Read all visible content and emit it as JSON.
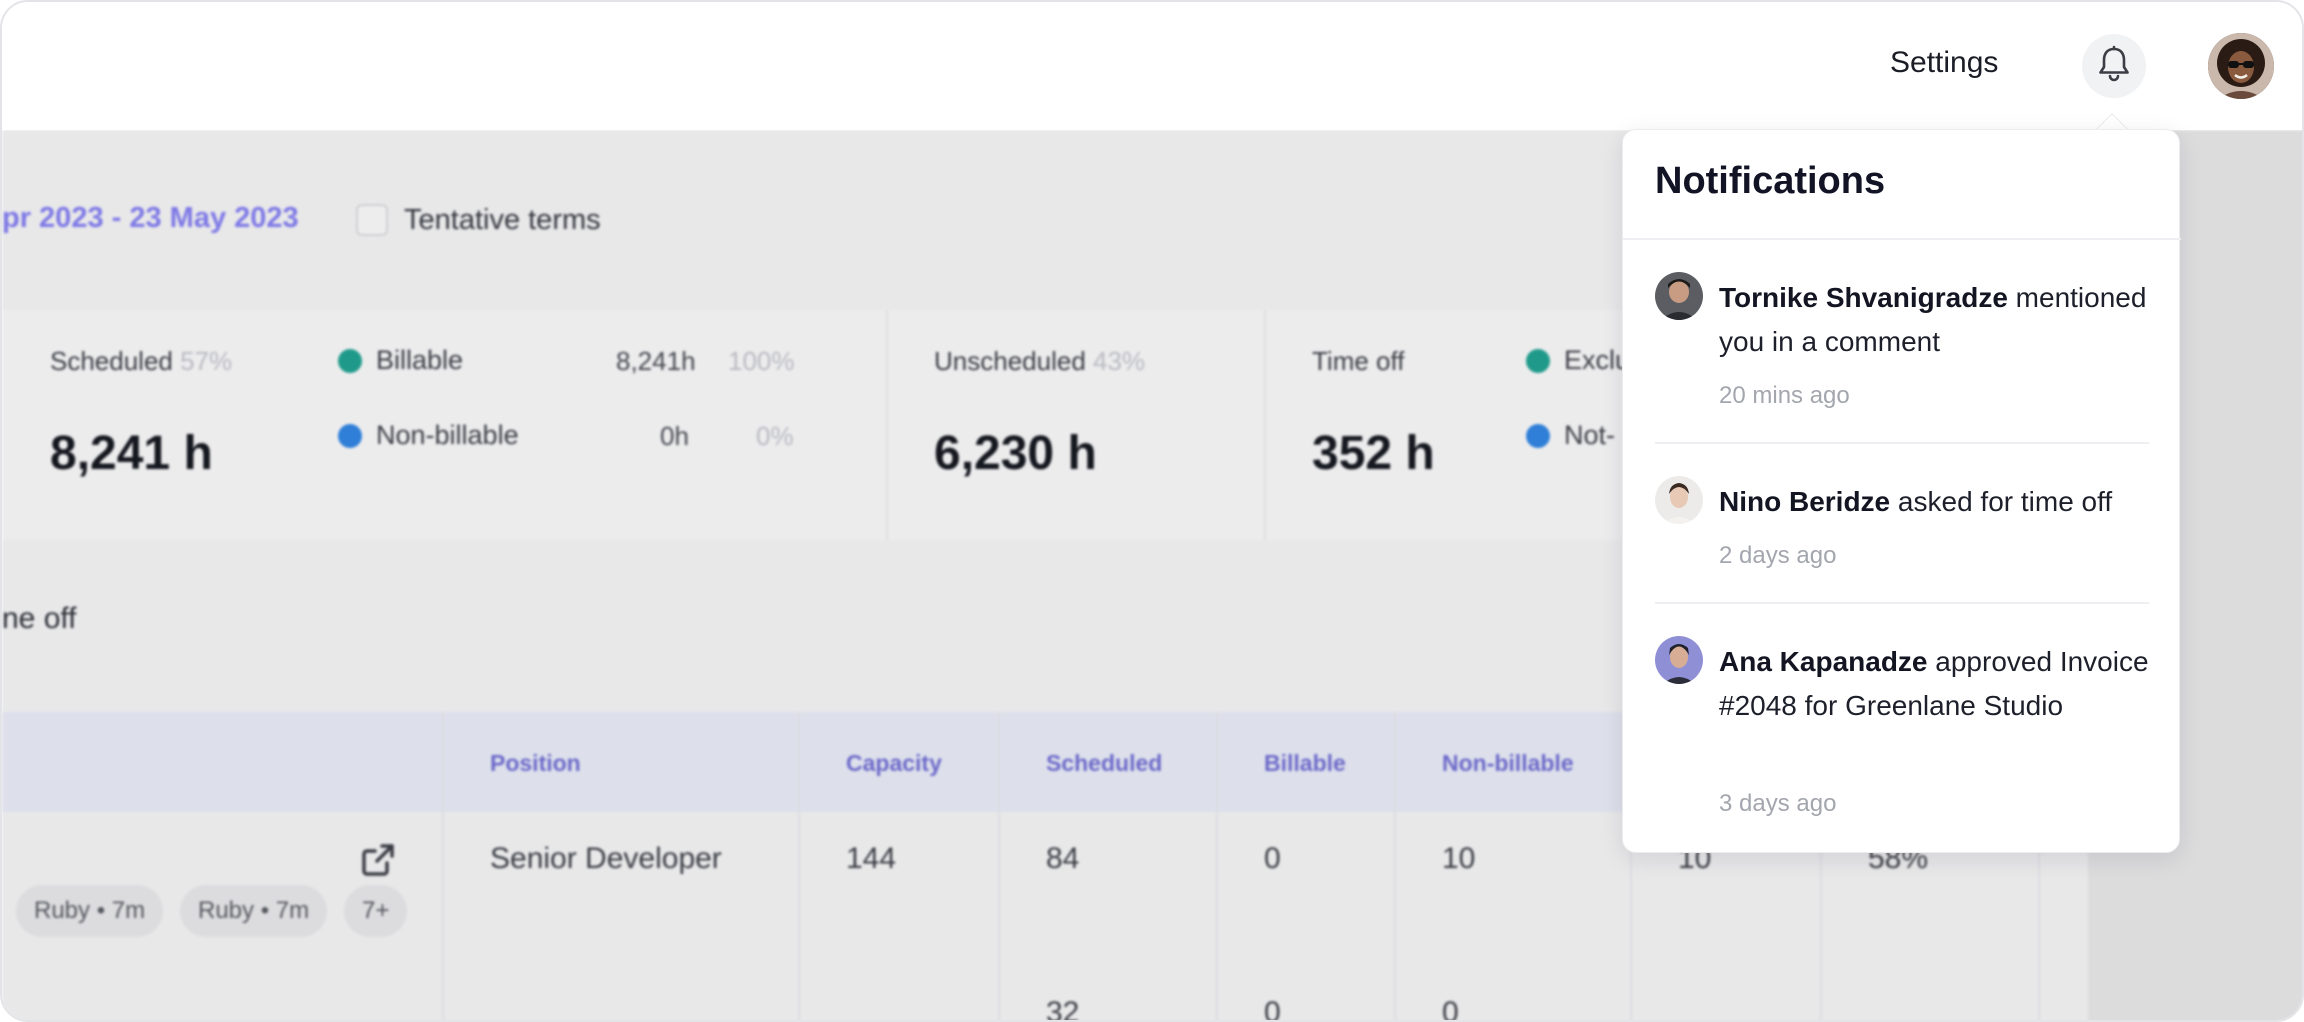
{
  "topbar": {
    "settings_label": "Settings"
  },
  "filters": {
    "date_range": "pr 2023 - 23 May 2023",
    "tentative_label": "Tentative terms"
  },
  "stats": {
    "scheduled": {
      "label": "Scheduled",
      "pct": "57%",
      "value": "8,241 h"
    },
    "billable": {
      "label": "Billable",
      "hours": "8,241h",
      "pct": "100%",
      "color": "#1f9a8a"
    },
    "non_billable": {
      "label": "Non-billable",
      "hours": "0h",
      "pct": "0%",
      "color": "#2f7fd8"
    },
    "unscheduled": {
      "label": "Unscheduled",
      "pct": "43%",
      "value": "6,230 h"
    },
    "time_off": {
      "label": "Time off",
      "value": "352 h"
    },
    "excl_fragment": {
      "label": "Exclu",
      "color": "#1f9a8a"
    },
    "not_fragment": {
      "label": "Not-",
      "color": "#2f7fd8"
    }
  },
  "section_fragment": "ne off",
  "table": {
    "headers": [
      "Position",
      "Capacity",
      "Scheduled",
      "Billable",
      "Non-billable"
    ],
    "row1": {
      "position": "Senior Developer",
      "capacity": "144",
      "scheduled": "84",
      "billable": "0",
      "non_billable": "10",
      "extra1": "10",
      "extra2": "58%"
    },
    "row2": {
      "scheduled": "32",
      "billable": "0",
      "non_billable": "0"
    },
    "chips": [
      "Ruby • 7m",
      "Ruby • 7m",
      "7+"
    ]
  },
  "notifications": {
    "title": "Notifications",
    "items": [
      {
        "name": "Tornike Shvanigradze",
        "text": "mentioned you in a comment",
        "time": "20 mins ago"
      },
      {
        "name": "Nino Beridze",
        "text": "asked for time off",
        "time": "2 days ago"
      },
      {
        "name": "Ana Kapanadze",
        "text": "approved Invoice #2048 for Greenlane Studio",
        "time": "3 days ago"
      }
    ]
  }
}
